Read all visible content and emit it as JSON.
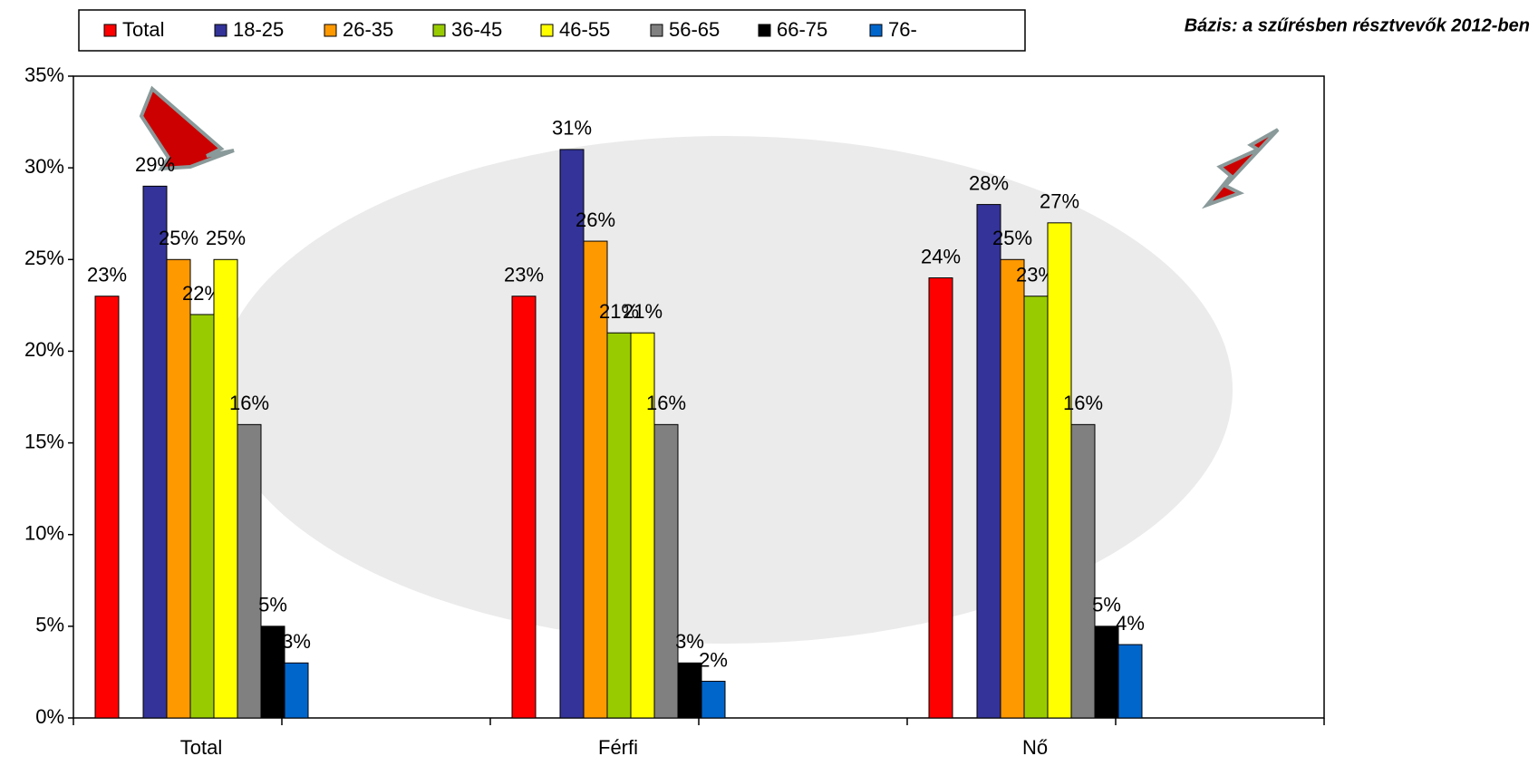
{
  "chart_data": {
    "type": "bar",
    "annotation": "Bázis: a szűrésben résztvevők 2012-ben",
    "categories": [
      "Total",
      "Férfi",
      "Nő"
    ],
    "series": [
      {
        "name": "Total",
        "color": "#ff0000",
        "values": [
          23,
          23,
          24
        ],
        "value_labels": [
          "23%",
          "23%",
          "24%"
        ]
      },
      {
        "name": "18-25",
        "color": "#333399",
        "values": [
          29,
          31,
          28
        ],
        "value_labels": [
          "29%",
          "31%",
          "28%"
        ]
      },
      {
        "name": "26-35",
        "color": "#ff9900",
        "values": [
          25,
          26,
          25
        ],
        "value_labels": [
          "25%",
          "26%",
          "25%"
        ]
      },
      {
        "name": "36-45",
        "color": "#99cc00",
        "values": [
          22,
          21,
          23
        ],
        "value_labels": [
          "22%",
          "21%",
          "23%"
        ]
      },
      {
        "name": "46-55",
        "color": "#ffff00",
        "values": [
          25,
          21,
          27
        ],
        "value_labels": [
          "25%",
          "21%",
          "27%"
        ]
      },
      {
        "name": "56-65",
        "color": "#808080",
        "values": [
          16,
          16,
          16
        ],
        "value_labels": [
          "16%",
          "16%",
          "16%"
        ]
      },
      {
        "name": "66-75",
        "color": "#000000",
        "values": [
          5,
          3,
          5
        ],
        "value_labels": [
          "5%",
          "3%",
          "5%"
        ]
      },
      {
        "name": "76-",
        "color": "#0066cc",
        "values": [
          3,
          2,
          4
        ],
        "value_labels": [
          "3%",
          "2%",
          "4%"
        ]
      }
    ],
    "ylim": [
      0,
      35
    ],
    "yticks": [
      {
        "value": 0,
        "label": "0%"
      },
      {
        "value": 5,
        "label": "5%"
      },
      {
        "value": 10,
        "label": "10%"
      },
      {
        "value": 15,
        "label": "15%"
      },
      {
        "value": 20,
        "label": "20%"
      },
      {
        "value": 25,
        "label": "25%"
      },
      {
        "value": 30,
        "label": "30%"
      },
      {
        "value": 35,
        "label": "35%"
      }
    ],
    "legend": "top"
  }
}
